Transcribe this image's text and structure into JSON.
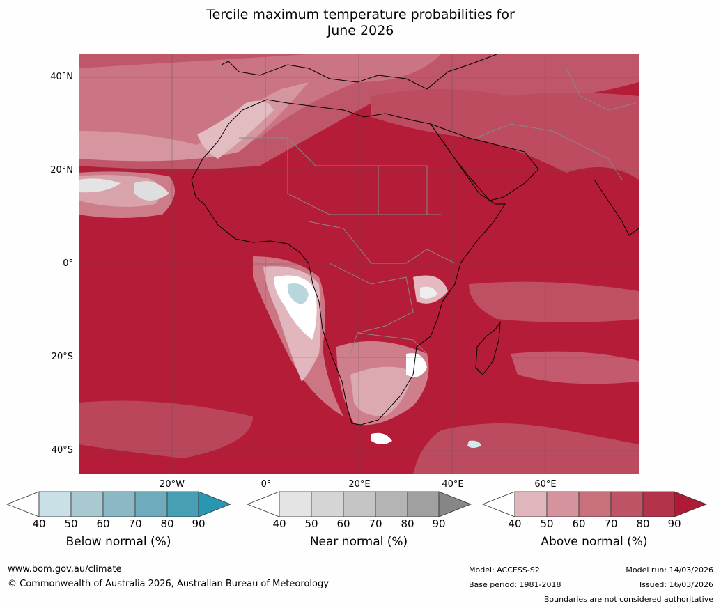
{
  "title": {
    "line1": "Tercile maximum temperature probabilities for",
    "line2": "June 2026"
  },
  "map": {
    "lat_labels": [
      "40°N",
      "20°N",
      "0°",
      "20°S",
      "40°S"
    ],
    "lon_labels": [
      "20°W",
      "0°",
      "20°E",
      "40°E",
      "60°E"
    ]
  },
  "colorbars": [
    {
      "label": "Below normal (%)",
      "ticks": [
        "40",
        "50",
        "60",
        "70",
        "80",
        "90"
      ],
      "colors": [
        "#ffffff",
        "#c9e0e6",
        "#a8c9cf",
        "#8ab9c5",
        "#6eacbd",
        "#479fb3",
        "#2996b2"
      ]
    },
    {
      "label": "Near normal (%)",
      "ticks": [
        "40",
        "50",
        "60",
        "70",
        "80",
        "90"
      ],
      "colors": [
        "#ffffff",
        "#e4e4e4",
        "#d5d5d5",
        "#c5c5c5",
        "#b4b4b4",
        "#a0a0a0",
        "#868686"
      ]
    },
    {
      "label": "Above normal (%)",
      "ticks": [
        "40",
        "50",
        "60",
        "70",
        "80",
        "90"
      ],
      "colors": [
        "#ffffff",
        "#e0b6bd",
        "#d4939d",
        "#c8717d",
        "#bd5364",
        "#b3334b",
        "#b11a36"
      ]
    }
  ],
  "footer": {
    "website": "www.bom.gov.au/climate",
    "copyright": "© Commonwealth of Australia 2026, Australian Bureau of Meteorology",
    "model": "Model: ACCESS-S2",
    "base_period": "Base period: 1981-2018",
    "model_run": "Model run: 14/03/2026",
    "issued": "Issued: 16/03/2026",
    "disclaimer": "Boundaries are not considered authoritative"
  }
}
